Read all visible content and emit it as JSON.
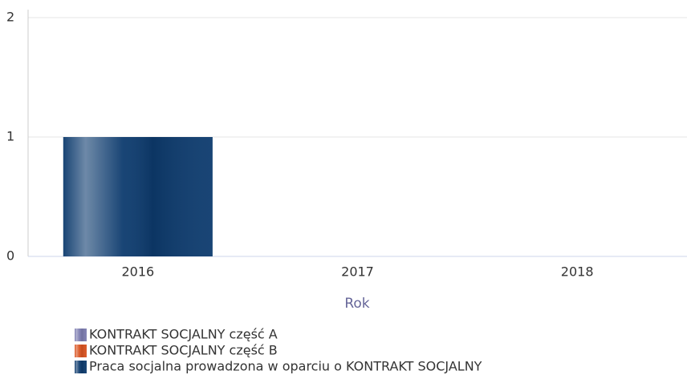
{
  "chart_data": {
    "type": "bar",
    "stacked": true,
    "x_label": "Rok",
    "categories": [
      "2016",
      "2017",
      "2018"
    ],
    "series": [
      {
        "name": "KONTRAKT SOCJALNY część A",
        "color": "#7c7cb0",
        "values": [
          0,
          0,
          0
        ]
      },
      {
        "name": "KONTRAKT SOCJALNY część B",
        "color": "#d9521f",
        "values": [
          0,
          0,
          0
        ]
      },
      {
        "name": "Praca socjalna prowadzona w oparciu o KONTRAKT SOCJALNY",
        "color": "#0d3b6e",
        "values": [
          1,
          0,
          0
        ]
      }
    ],
    "ylim": [
      0,
      2
    ],
    "yticks": [
      0,
      1,
      2
    ],
    "grid": true
  }
}
